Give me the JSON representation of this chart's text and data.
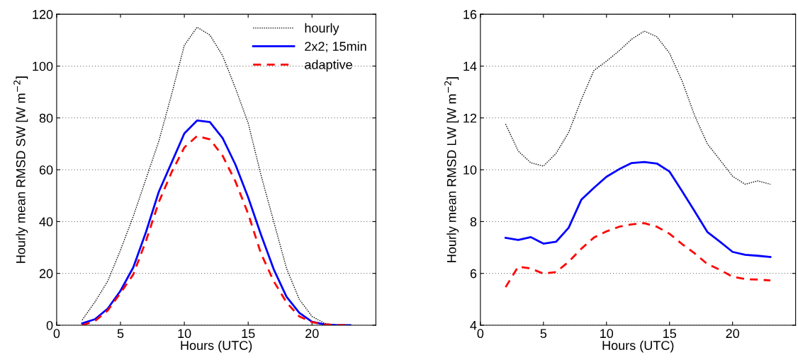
{
  "chart_data": [
    {
      "type": "line",
      "xlabel": "Hours (UTC)",
      "ylabel": "Hourly mean RMSD SW [W m$^{−2}$]",
      "xlim": [
        0,
        25
      ],
      "xticks": [
        0,
        5,
        10,
        15,
        20
      ],
      "ylim": [
        0,
        120
      ],
      "yticks": [
        0,
        20,
        40,
        60,
        80,
        100,
        120
      ],
      "grid": "y",
      "legend": "top right",
      "x": [
        2,
        3,
        4,
        5,
        6,
        7,
        8,
        9,
        10,
        11,
        12,
        13,
        14,
        15,
        16,
        17,
        18,
        19,
        20,
        21,
        22,
        23
      ],
      "series": [
        {
          "name": "hourly",
          "color": "#000000",
          "line_style": "dotted",
          "values": [
            2,
            9,
            17,
            29,
            42,
            56.5,
            71,
            89,
            108,
            115,
            112,
            104,
            91.5,
            78,
            58,
            40,
            22,
            10,
            3.4,
            0.7,
            0,
            0
          ]
        },
        {
          "name": "2x2; 15min",
          "color": "#0000ff",
          "line_style": "solid",
          "values": [
            0.7,
            2.3,
            6.4,
            13.3,
            22.3,
            36,
            51.5,
            62.7,
            74,
            79,
            78.4,
            72.2,
            62,
            49.3,
            35,
            21.6,
            11,
            4.8,
            1.3,
            0.3,
            0,
            0
          ]
        },
        {
          "name": "adaptive",
          "color": "#ff0000",
          "line_style": "dashed",
          "values": [
            0,
            1.6,
            5.7,
            12.4,
            19.6,
            32.6,
            47.5,
            59,
            68.6,
            73,
            71.7,
            65.4,
            55.5,
            43,
            27.7,
            17,
            8.8,
            3.4,
            1.2,
            0.3,
            0,
            0
          ]
        }
      ]
    },
    {
      "type": "line",
      "xlabel": "Hours (UTC)",
      "ylabel": "Hourly mean RMSD LW [W m$^{−2}$]",
      "xlim": [
        0,
        25
      ],
      "xticks": [
        0,
        5,
        10,
        15,
        20
      ],
      "ylim": [
        4,
        16
      ],
      "yticks": [
        4,
        6,
        8,
        10,
        12,
        14,
        16
      ],
      "grid": "y",
      "x": [
        2,
        3,
        4,
        5,
        6,
        7,
        8,
        9,
        10,
        11,
        12,
        13,
        14,
        15,
        16,
        17,
        18,
        19,
        20,
        21,
        22,
        23
      ],
      "series": [
        {
          "color": "#000000",
          "line_style": "dotted",
          "values": [
            11.76,
            10.72,
            10.27,
            10.14,
            10.63,
            11.44,
            12.7,
            13.83,
            14.19,
            14.59,
            15.04,
            15.35,
            15.13,
            14.5,
            13.42,
            12.08,
            11.0,
            10.38,
            9.75,
            9.44,
            9.57,
            9.44
          ]
        },
        {
          "color": "#0000ff",
          "line_style": "solid",
          "values": [
            7.37,
            7.29,
            7.4,
            7.15,
            7.22,
            7.76,
            8.84,
            9.3,
            9.73,
            10.02,
            10.26,
            10.3,
            10.24,
            9.93,
            9.17,
            8.39,
            7.6,
            7.22,
            6.83,
            6.72,
            6.68,
            6.63
          ]
        },
        {
          "color": "#ff0000",
          "line_style": "dashed",
          "values": [
            5.47,
            6.26,
            6.19,
            5.99,
            6.05,
            6.45,
            6.95,
            7.38,
            7.62,
            7.8,
            7.89,
            7.94,
            7.8,
            7.53,
            7.13,
            6.77,
            6.36,
            6.14,
            5.87,
            5.78,
            5.76,
            5.73
          ]
        }
      ]
    }
  ]
}
